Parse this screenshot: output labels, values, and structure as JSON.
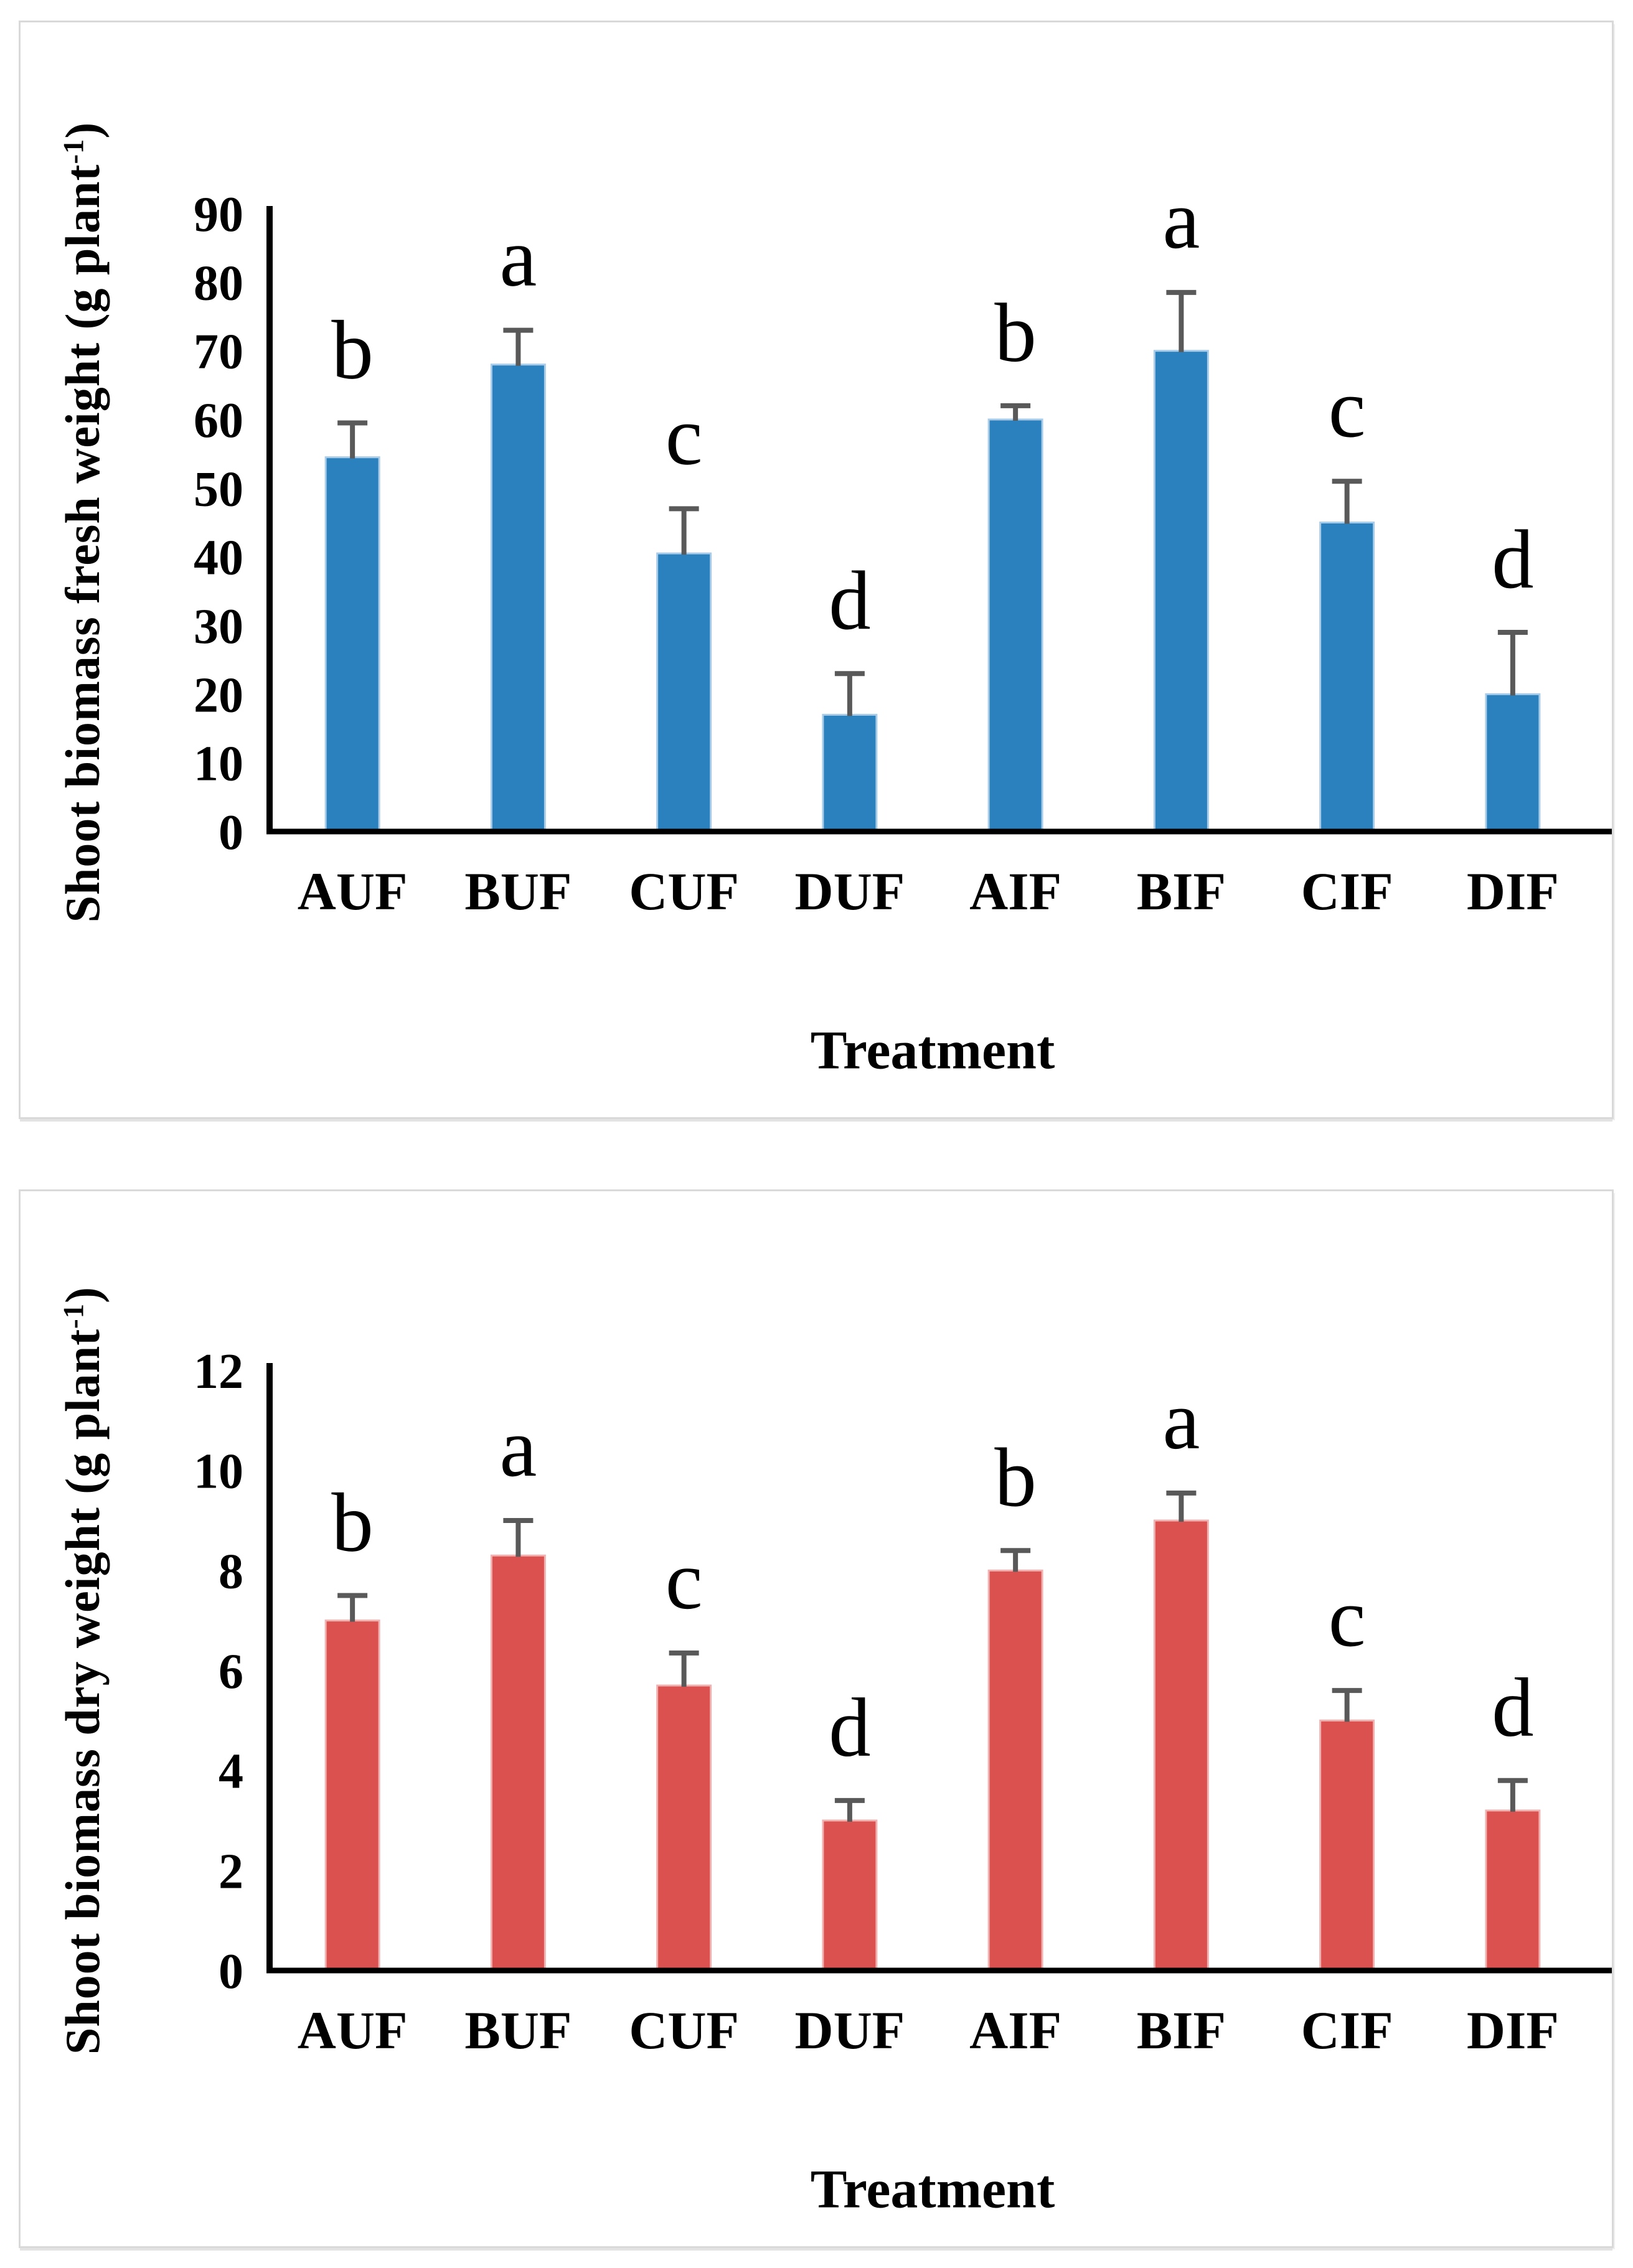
{
  "page": {
    "background": "#FFFFFF",
    "panel_border_color": "#D9D9D9"
  },
  "chart_data": [
    {
      "type": "bar",
      "panel": "top",
      "title": "",
      "ylabel": "Shoot biomass fresh weight (g plant⁻¹)",
      "ylabel_prefix": "Shoot biomass fresh weight (g plant",
      "ylabel_sup": "-1",
      "ylabel_suffix": ")",
      "xlabel": "Treatment",
      "categories": [
        "AUF",
        "BUF",
        "CUF",
        "DUF",
        "AIF",
        "BIF",
        "CIF",
        "DIF"
      ],
      "values": [
        54.5,
        68,
        40.5,
        17,
        60,
        70,
        45,
        20
      ],
      "errors_plus": [
        5,
        5,
        6.5,
        6,
        2,
        8.5,
        6,
        9
      ],
      "sig_letters": [
        "b",
        "a",
        "c",
        "d",
        "b",
        "a",
        "c",
        "d"
      ],
      "ylim": [
        0,
        90
      ],
      "ytick_step": 10,
      "ytick_labels": [
        "0",
        "10",
        "20",
        "30",
        "40",
        "50",
        "60",
        "70",
        "80",
        "90"
      ],
      "grid": "off",
      "legend": "none",
      "bar_color": "#2B81BD",
      "bar_edge_color": "#A9CCE9",
      "error_bar_color": "#595959",
      "axis_color": "#000000"
    },
    {
      "type": "bar",
      "panel": "bottom",
      "title": "",
      "ylabel": "Shoot biomass dry weight (g plant⁻¹)",
      "ylabel_prefix": "Shoot biomass dry weight (g plant",
      "ylabel_sup": "-1",
      "ylabel_suffix": ")",
      "xlabel": "Treatment",
      "categories": [
        "AUF",
        "BUF",
        "CUF",
        "DUF",
        "AIF",
        "BIF",
        "CIF",
        "DIF"
      ],
      "values": [
        7.0,
        8.3,
        5.7,
        3.0,
        8.0,
        9.0,
        5.0,
        3.2
      ],
      "errors_plus": [
        0.5,
        0.7,
        0.65,
        0.4,
        0.4,
        0.55,
        0.6,
        0.6
      ],
      "sig_letters": [
        "b",
        "a",
        "c",
        "d",
        "b",
        "a",
        "c",
        "d"
      ],
      "ylim": [
        0,
        12
      ],
      "ytick_step": 2,
      "ytick_labels": [
        "0",
        "2",
        "4",
        "6",
        "8",
        "10",
        "12"
      ],
      "grid": "off",
      "legend": "none",
      "bar_color": "#DB5150",
      "bar_edge_color": "#F1B3B1",
      "error_bar_color": "#595959",
      "axis_color": "#000000"
    }
  ]
}
